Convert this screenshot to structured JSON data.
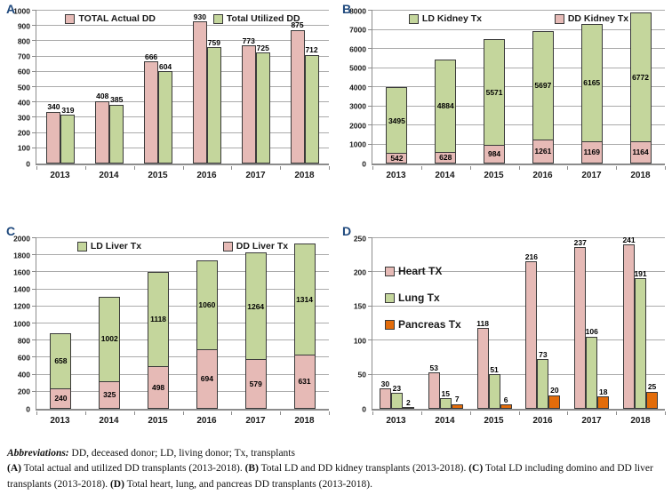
{
  "figure": {
    "caption": {
      "abbrev_label": "Abbreviations:",
      "abbrev_text": " DD, deceased donor; LD, living donor; Tx, transplants",
      "parts": [
        {
          "label": "(A)",
          "text": " Total actual and utilized DD transplants (2013-2018). "
        },
        {
          "label": "(B)",
          "text": " Total LD and DD kidney transplants (2013-2018). "
        },
        {
          "label": "(C)",
          "text": " Total LD including domino and DD liver transplants (2013-2018). "
        },
        {
          "label": "(D)",
          "text": " Total heart, lung, and pancreas DD transplants (2013-2018)."
        }
      ]
    }
  },
  "colors": {
    "pink": "#e6bab6",
    "green": "#c4d69c",
    "orange": "#e36c0a",
    "bar_border": "#3a3a3a",
    "panel_letter_blue": "#1f497d",
    "gridline": "#ababab",
    "axis": "#8c8c8c"
  },
  "chart_data": [
    {
      "panel": "A",
      "type": "bar",
      "stacked": false,
      "legend_position": "top-row",
      "value_labels": "above",
      "grid": true,
      "categories": [
        "2013",
        "2014",
        "2015",
        "2016",
        "2017",
        "2018"
      ],
      "series": [
        {
          "name": "TOTAL Actual DD",
          "color": "#e6bab6",
          "values": [
            340,
            408,
            666,
            930,
            773,
            875
          ]
        },
        {
          "name": "Total Utilized DD",
          "color": "#c4d69c",
          "values": [
            319,
            385,
            604,
            759,
            725,
            712
          ]
        }
      ],
      "ylim": [
        0,
        1000
      ],
      "ystep": 100
    },
    {
      "panel": "B",
      "type": "bar",
      "stacked": true,
      "legend_position": "top-row",
      "value_labels": "inside",
      "grid": true,
      "categories": [
        "2013",
        "2014",
        "2015",
        "2016",
        "2017",
        "2018"
      ],
      "series": [
        {
          "name": "LD Kidney Tx",
          "color": "#c4d69c",
          "values": [
            3495,
            4884,
            5571,
            5697,
            6165,
            6772
          ]
        },
        {
          "name": "DD Kidney Tx",
          "color": "#e6bab6",
          "values": [
            542,
            628,
            984,
            1261,
            1169,
            1164
          ]
        }
      ],
      "ylim": [
        0,
        8000
      ],
      "ystep": 1000
    },
    {
      "panel": "C",
      "type": "bar",
      "stacked": true,
      "legend_position": "top-row",
      "value_labels": "inside",
      "grid": true,
      "categories": [
        "2013",
        "2014",
        "2015",
        "2016",
        "2017",
        "2018"
      ],
      "series": [
        {
          "name": "LD Liver Tx",
          "color": "#c4d69c",
          "values": [
            658,
            1002,
            1118,
            1060,
            1264,
            1314
          ]
        },
        {
          "name": "DD Liver Tx",
          "color": "#e6bab6",
          "values": [
            240,
            325,
            498,
            694,
            579,
            631
          ]
        }
      ],
      "ylim": [
        0,
        2000
      ],
      "ystep": 200
    },
    {
      "panel": "D",
      "type": "bar",
      "stacked": false,
      "legend_position": "left-column",
      "value_labels": "above",
      "grid": true,
      "categories": [
        "2013",
        "2014",
        "2015",
        "2016",
        "2017",
        "2018"
      ],
      "series": [
        {
          "name": "Heart TX",
          "color": "#e6bab6",
          "values": [
            30,
            53,
            118,
            216,
            237,
            241
          ]
        },
        {
          "name": "Lung Tx",
          "color": "#c4d69c",
          "values": [
            23,
            15,
            51,
            73,
            106,
            191
          ]
        },
        {
          "name": "Pancreas Tx",
          "color": "#e36c0a",
          "values": [
            2,
            7,
            6,
            20,
            18,
            25
          ]
        }
      ],
      "ylim": [
        0,
        250
      ],
      "ystep": 50
    }
  ]
}
